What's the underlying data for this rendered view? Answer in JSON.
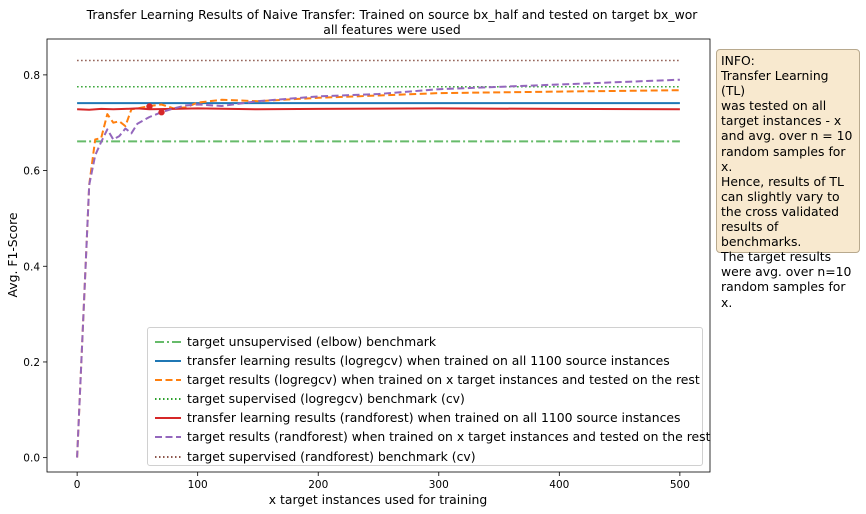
{
  "chart_data": {
    "type": "line",
    "title": "Transfer Learning Results of Naive Transfer: Trained on source bx_half and tested on target bx_wor",
    "subtitle": "all features were used",
    "xlabel": "x target instances used for training",
    "ylabel": "Avg. F1-Score",
    "xlim": [
      -25,
      525
    ],
    "ylim": [
      -0.03,
      0.875
    ],
    "x_ticks": [
      0,
      100,
      200,
      300,
      400,
      500
    ],
    "y_ticks": [
      0.0,
      0.2,
      0.4,
      0.6,
      0.8
    ],
    "y_tick_labels": [
      "0.0",
      "0.2",
      "0.4",
      "0.6",
      "0.8"
    ],
    "grid": false,
    "legend_position": "lower-right",
    "series": [
      {
        "name": "target unsupervised (elbow) benchmark",
        "kind": "hline",
        "color": "#66bb6a",
        "style": "dashdot",
        "y": 0.661,
        "x_range": [
          0,
          500
        ]
      },
      {
        "name": "transfer learning results (logregcv) when trained on all 1100 source instances",
        "kind": "hline",
        "color": "#1f77b4",
        "style": "solid",
        "y": 0.741,
        "x_range": [
          0,
          500
        ]
      },
      {
        "name": "target results (logregcv) when trained on x target instances and tested on the rest",
        "kind": "line",
        "color": "#ff7f0e",
        "style": "dashed",
        "x": [
          0,
          10,
          15,
          20,
          25,
          30,
          35,
          40,
          45,
          50,
          60,
          70,
          80,
          90,
          100,
          120,
          150,
          200,
          250,
          300,
          400,
          500
        ],
        "y": [
          0.0,
          0.57,
          0.665,
          0.668,
          0.718,
          0.7,
          0.703,
          0.693,
          0.728,
          0.73,
          0.735,
          0.738,
          0.73,
          0.732,
          0.742,
          0.748,
          0.745,
          0.752,
          0.757,
          0.762,
          0.765,
          0.768
        ]
      },
      {
        "name": "target supervised (logregcv) benchmark (cv)",
        "kind": "hline",
        "color": "#2ca02c",
        "style": "dotted",
        "y": 0.775,
        "x_range": [
          0,
          500
        ]
      },
      {
        "name": "transfer learning results (randforest) when trained on all 1100 source instances",
        "kind": "line",
        "color": "#d62728",
        "style": "solid",
        "x": [
          0,
          10,
          20,
          30,
          40,
          50,
          60,
          80,
          100,
          150,
          200,
          300,
          400,
          500
        ],
        "y": [
          0.728,
          0.727,
          0.729,
          0.728,
          0.729,
          0.73,
          0.728,
          0.729,
          0.73,
          0.728,
          0.729,
          0.73,
          0.729,
          0.728
        ]
      },
      {
        "name": "target results (randforest) when trained on x target instances and tested on the rest",
        "kind": "line",
        "color": "#9467bd",
        "style": "dashed",
        "x": [
          0,
          10,
          15,
          20,
          25,
          30,
          35,
          40,
          45,
          50,
          60,
          70,
          80,
          90,
          100,
          120,
          150,
          200,
          250,
          300,
          400,
          500
        ],
        "y": [
          0.0,
          0.57,
          0.632,
          0.66,
          0.686,
          0.665,
          0.672,
          0.688,
          0.678,
          0.698,
          0.712,
          0.722,
          0.73,
          0.736,
          0.738,
          0.735,
          0.745,
          0.755,
          0.76,
          0.77,
          0.78,
          0.79
        ]
      },
      {
        "name": "target supervised (randforest) benchmark (cv)",
        "kind": "hline",
        "color": "#8c564b",
        "style": "dotted",
        "y": 0.83,
        "x_range": [
          0,
          500
        ]
      }
    ],
    "markers": [
      {
        "x": 60,
        "y": 0.734,
        "color": "#d62728"
      },
      {
        "x": 70,
        "y": 0.722,
        "color": "#d62728"
      }
    ]
  },
  "info_box": {
    "text": "INFO:\nTransfer Learning (TL)\nwas tested on all\ntarget instances - x\nand avg. over n = 10\nrandom samples for x.\nHence, results of TL\ncan slightly vary to\nthe cross validated\nresults of benchmarks.\nThe target results\nwere avg. over n=10\nrandom samples for x."
  }
}
